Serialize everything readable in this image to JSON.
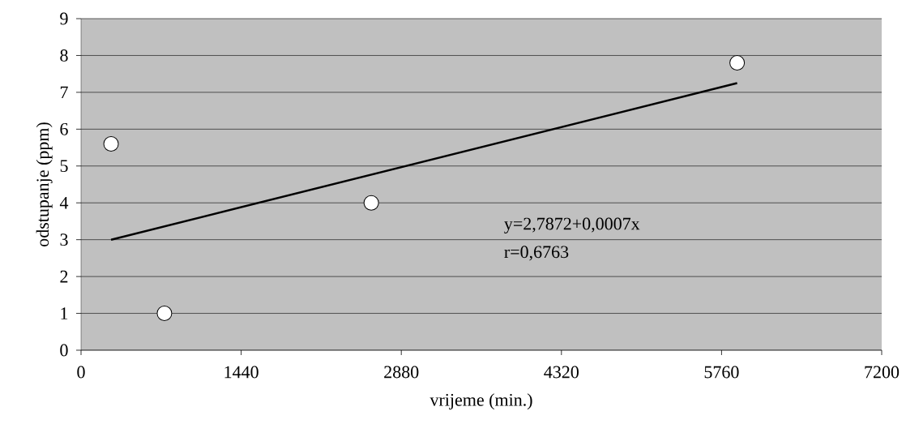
{
  "chart_data": {
    "type": "scatter",
    "xlabel": "vrijeme (min.)",
    "ylabel": "odstupanje (ppm)",
    "xlim": [
      0,
      7200
    ],
    "xticks": [
      0,
      1440,
      2880,
      4320,
      5760,
      7200
    ],
    "ylim": [
      0,
      9
    ],
    "yticks": [
      0,
      1,
      2,
      3,
      4,
      5,
      6,
      7,
      8,
      9
    ],
    "grid": "y",
    "series": [
      {
        "x": [
          270,
          750,
          2610,
          5900
        ],
        "values": [
          5.6,
          1.0,
          4.0,
          7.8
        ],
        "color": "#ffffff",
        "marker": "circle"
      },
      {
        "type": "line",
        "x": [
          270,
          5900
        ],
        "values": [
          3.0,
          7.25
        ],
        "color": "#000000",
        "marker": "none",
        "line_style": "solid"
      }
    ],
    "annotations": [
      "y=2,7872+0,0007x",
      "r=0,6763"
    ]
  }
}
